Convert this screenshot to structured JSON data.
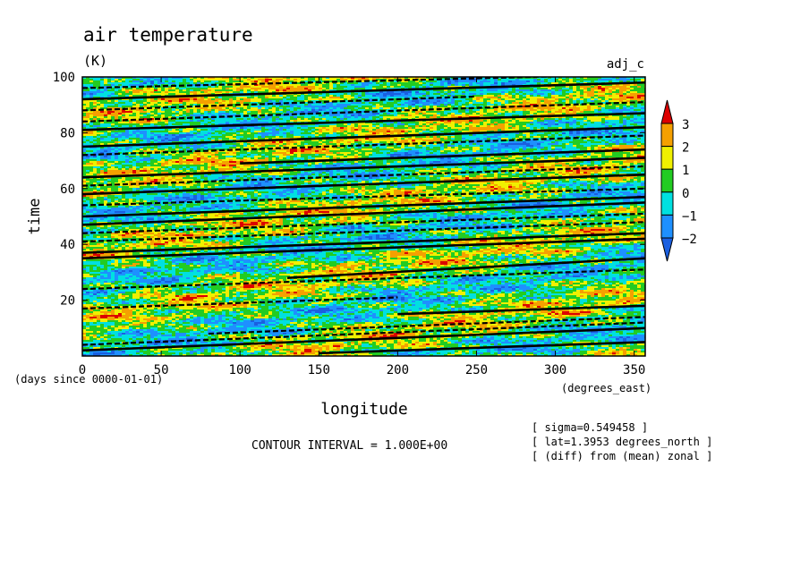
{
  "chart_data": {
    "type": "heatmap",
    "title": "air temperature",
    "units": "(K)",
    "run_label": "adj_c",
    "xlabel": "longitude",
    "x_units": "(degrees_east)",
    "ylabel": "time",
    "y_units": "(days since 0000-01-01)",
    "xlim": [
      0,
      357
    ],
    "ylim": [
      0,
      100
    ],
    "xticks": [
      0,
      50,
      100,
      150,
      200,
      250,
      300,
      350
    ],
    "yticks": [
      20,
      40,
      60,
      80,
      100
    ],
    "colorbar": {
      "levels": [
        3,
        2,
        1,
        0,
        -1,
        -2
      ],
      "colors": [
        "#dd0000",
        "#f5a000",
        "#f0f000",
        "#22cc22",
        "#00e0e0",
        "#1e90ff",
        "#1a5fe0"
      ]
    },
    "contour_interval": "CONTOUR INTERVAL = 1.000E+00",
    "annotations": [
      "[ sigma=0.549458 ]",
      "[ lat=1.3953 degrees_north ]",
      "[ (diff) from (mean) zonal ]"
    ],
    "contour_lines": [
      {
        "x": [
          0,
          357
        ],
        "y": [
          2,
          10
        ],
        "style": "solid"
      },
      {
        "x": [
          150,
          357
        ],
        "y": [
          1,
          5
        ],
        "style": "solid"
      },
      {
        "x": [
          0,
          357
        ],
        "y": [
          4,
          12
        ],
        "style": "dashed"
      },
      {
        "x": [
          80,
          357
        ],
        "y": [
          8,
          14
        ],
        "style": "dashed"
      },
      {
        "x": [
          200,
          357
        ],
        "y": [
          15,
          18
        ],
        "style": "solid"
      },
      {
        "x": [
          0,
          200
        ],
        "y": [
          17,
          21
        ],
        "style": "dashed"
      },
      {
        "x": [
          130,
          357
        ],
        "y": [
          28,
          35
        ],
        "style": "solid"
      },
      {
        "x": [
          0,
          357
        ],
        "y": [
          24,
          31
        ],
        "style": "dashed"
      },
      {
        "x": [
          0,
          357
        ],
        "y": [
          35,
          42
        ],
        "style": "solid"
      },
      {
        "x": [
          0,
          357
        ],
        "y": [
          37,
          44
        ],
        "style": "solid"
      },
      {
        "x": [
          0,
          357
        ],
        "y": [
          41,
          48
        ],
        "style": "dashed"
      },
      {
        "x": [
          0,
          357
        ],
        "y": [
          44,
          51
        ],
        "style": "dashed"
      },
      {
        "x": [
          0,
          357
        ],
        "y": [
          47,
          55
        ],
        "style": "solid"
      },
      {
        "x": [
          0,
          357
        ],
        "y": [
          50,
          57
        ],
        "style": "solid"
      },
      {
        "x": [
          0,
          357
        ],
        "y": [
          54,
          60
        ],
        "style": "dashed"
      },
      {
        "x": [
          0,
          357
        ],
        "y": [
          58,
          65
        ],
        "style": "solid"
      },
      {
        "x": [
          0,
          357
        ],
        "y": [
          61,
          68
        ],
        "style": "dashed"
      },
      {
        "x": [
          0,
          357
        ],
        "y": [
          64,
          71
        ],
        "style": "solid"
      },
      {
        "x": [
          100,
          357
        ],
        "y": [
          69,
          74
        ],
        "style": "solid"
      },
      {
        "x": [
          0,
          357
        ],
        "y": [
          72,
          79
        ],
        "style": "dashed"
      },
      {
        "x": [
          0,
          357
        ],
        "y": [
          75,
          82
        ],
        "style": "solid"
      },
      {
        "x": [
          0,
          357
        ],
        "y": [
          81,
          87
        ],
        "style": "solid"
      },
      {
        "x": [
          0,
          357
        ],
        "y": [
          84,
          91
        ],
        "style": "dashed"
      },
      {
        "x": [
          0,
          250
        ],
        "y": [
          88,
          93
        ],
        "style": "dashed"
      },
      {
        "x": [
          0,
          357
        ],
        "y": [
          92,
          98
        ],
        "style": "solid"
      },
      {
        "x": [
          0,
          357
        ],
        "y": [
          96,
          101
        ],
        "style": "dashed"
      }
    ]
  }
}
